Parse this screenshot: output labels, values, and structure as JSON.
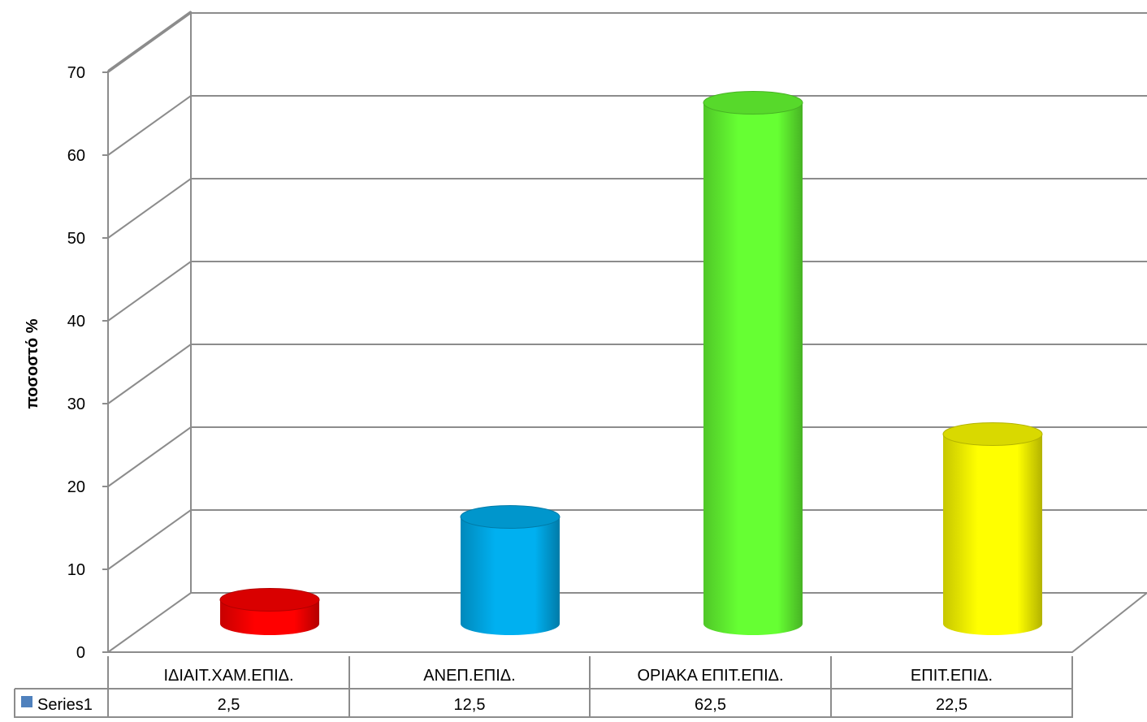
{
  "chart_data": {
    "type": "bar",
    "style": "3d-cylinder",
    "categories": [
      "ΙΔΙΑΙΤ.ΧΑΜ.ΕΠΙΔ.",
      "ΑΝΕΠ.ΕΠΙΔ.",
      "ΟΡΙΑΚΑ ΕΠΙΤ.ΕΠΙΔ.",
      "ΕΠΙΤ.ΕΠΙΔ."
    ],
    "series": [
      {
        "name": "Series1",
        "values": [
          2.5,
          12.5,
          62.5,
          22.5
        ],
        "value_labels": [
          "2,5",
          "12,5",
          "62,5",
          "22,5"
        ],
        "legend_color": "#4f81bd"
      }
    ],
    "bar_colors": [
      "#ff0000",
      "#00b0f0",
      "#66ff33",
      "#ffff00"
    ],
    "ylabel": "ποσοστό %",
    "xlabel": "",
    "ylim": [
      0,
      70
    ],
    "y_ticks": [
      0,
      10,
      20,
      30,
      40,
      50,
      60,
      70
    ],
    "grid": true,
    "data_table": true,
    "legend": "data-table"
  }
}
